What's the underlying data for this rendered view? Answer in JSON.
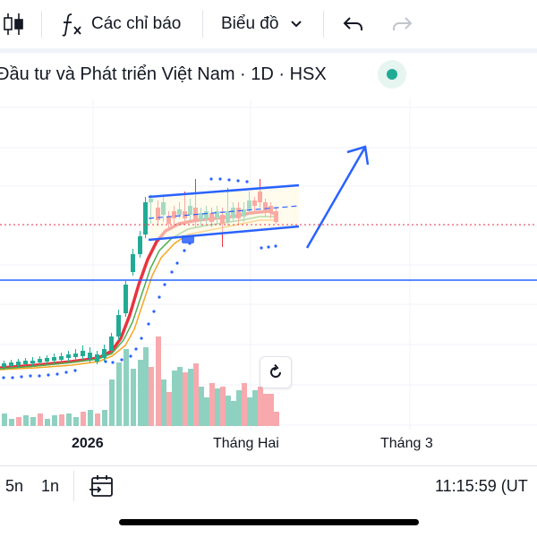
{
  "toolbar": {
    "indicators_label": "Các chỉ báo",
    "chart_type_label": "Biểu đồ"
  },
  "header": {
    "title": "Đầu tư và Phát triển Việt Nam · 1D · HSX",
    "status_color": "#22ab94"
  },
  "chart": {
    "x_labels": [
      "2026",
      "Tháng Hai",
      "Tháng 3"
    ],
    "colors": {
      "up": "#22ab94",
      "down": "#f23645",
      "volume_up": "#8fd1c0",
      "volume_down": "#f7a9ae",
      "ma_red": "#e8343f",
      "ma_orange": "#f5a623",
      "ma_green": "#4caf50",
      "psar": "#2962ff",
      "channel": "#2962ff",
      "horizontal_line": "#2962ff",
      "price_line": "#f23645"
    }
  },
  "bottom": {
    "ranges": [
      "5n",
      "1n"
    ],
    "time": "11:15:59 (UT"
  },
  "icons": {
    "chart_style": "candles-icon",
    "indicators": "fx-icon",
    "dropdown": "chevron-down-icon",
    "undo": "undo-icon",
    "redo": "redo-icon",
    "reset": "reset-icon",
    "goto_date": "goto-date-icon"
  }
}
